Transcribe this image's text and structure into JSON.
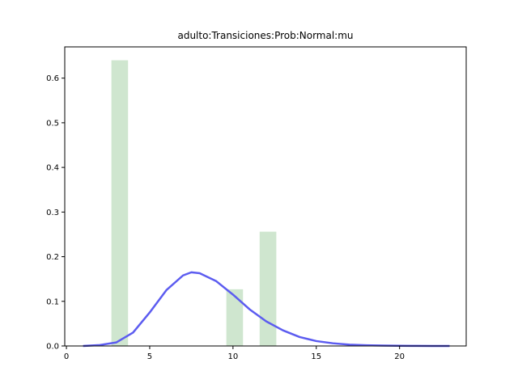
{
  "chart_data": {
    "type": "bar",
    "title": "adulto:Transiciones:Prob:Normal:mu",
    "xlabel": "",
    "ylabel": "",
    "xlim": [
      -0.1,
      24.0
    ],
    "ylim": [
      0,
      0.67
    ],
    "grid": false,
    "x_ticks": [
      0,
      5,
      10,
      15,
      20
    ],
    "x_tick_labels": [
      "0",
      "5",
      "10",
      "15",
      "20"
    ],
    "y_ticks": [
      0.0,
      0.1,
      0.2,
      0.3,
      0.4,
      0.5,
      0.6
    ],
    "y_tick_labels": [
      "0.0",
      "0.1",
      "0.2",
      "0.3",
      "0.4",
      "0.5",
      "0.6"
    ],
    "bars": {
      "color": "#cfe6cf",
      "width": 1.0,
      "x": [
        3.2,
        10.1,
        12.1
      ],
      "values": [
        0.64,
        0.127,
        0.256
      ]
    },
    "line": {
      "color": "#5c5cf0",
      "x": [
        1.0,
        2.0,
        3.0,
        4.0,
        5.0,
        6.0,
        7.0,
        7.5,
        8.0,
        9.0,
        10.0,
        11.0,
        12.0,
        13.0,
        14.0,
        15.0,
        16.0,
        17.0,
        18.0,
        19.0,
        20.0,
        21.0,
        22.0,
        23.0
      ],
      "values": [
        0.0,
        0.002,
        0.008,
        0.03,
        0.075,
        0.125,
        0.158,
        0.165,
        0.163,
        0.145,
        0.115,
        0.082,
        0.055,
        0.035,
        0.02,
        0.011,
        0.006,
        0.003,
        0.0015,
        0.0008,
        0.0004,
        0.0002,
        0.0001,
        0.0
      ]
    }
  }
}
